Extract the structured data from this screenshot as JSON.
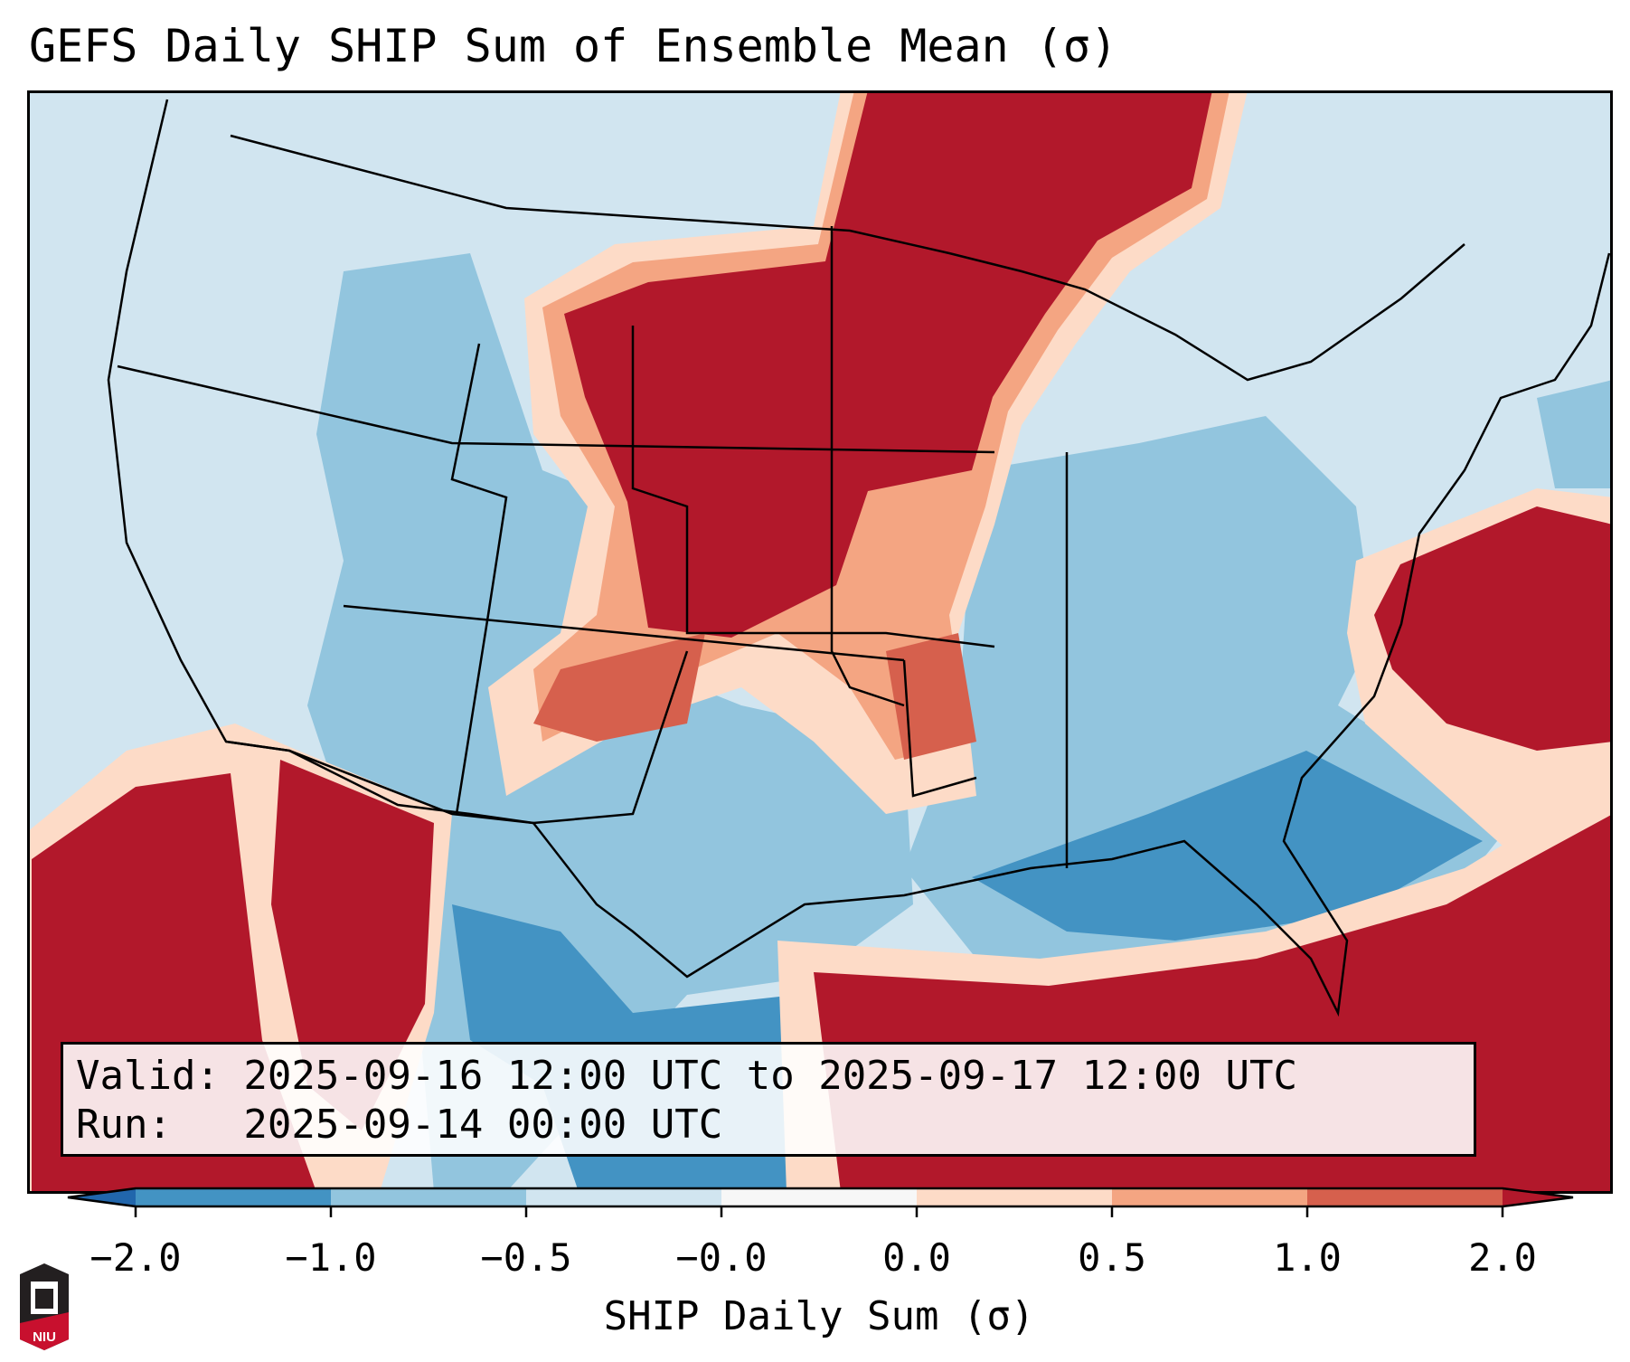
{
  "title": "GEFS Daily SHIP Sum of Ensemble Mean (σ)",
  "info": {
    "valid": "Valid: 2025-09-16 12:00 UTC to 2025-09-17 12:00 UTC",
    "run": "Run:   2025-09-14 00:00 UTC"
  },
  "colorbar": {
    "label": "SHIP Daily Sum (σ)",
    "ticks": [
      "−2.0",
      "−1.0",
      "−0.5",
      "−0.0",
      "0.0",
      "0.5",
      "1.0",
      "2.0"
    ],
    "colors": [
      "#2166ac",
      "#4393c3",
      "#92c5de",
      "#d1e5f0",
      "#f7f7f7",
      "#fddbc7",
      "#f4a582",
      "#d6604d",
      "#b2182b"
    ]
  },
  "logo": {
    "text": "NIU"
  }
}
